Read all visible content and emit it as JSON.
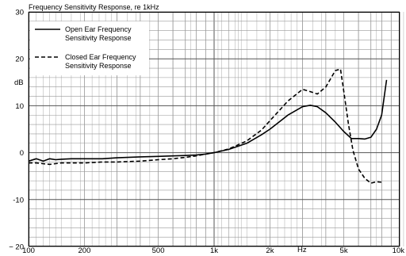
{
  "chart_data": {
    "type": "line",
    "title": "Frequency Sensitivity Response, re 1kHz",
    "xlabel": "Hz",
    "ylabel": "dB",
    "x_scale": "log",
    "xlim": [
      100,
      10000
    ],
    "ylim": [
      -20,
      30
    ],
    "x_ticks": [
      {
        "value": 100,
        "label": "100"
      },
      {
        "value": 200,
        "label": "200"
      },
      {
        "value": 500,
        "label": "500"
      },
      {
        "value": 1000,
        "label": "1k"
      },
      {
        "value": 2000,
        "label": "2k"
      },
      {
        "value": 5000,
        "label": "5k"
      },
      {
        "value": 10000,
        "label": "10k"
      }
    ],
    "y_ticks": [
      {
        "value": 30,
        "label": "30"
      },
      {
        "value": 20,
        "label": "20"
      },
      {
        "value": 10,
        "label": "10"
      },
      {
        "value": 0,
        "label": "0"
      },
      {
        "value": -10,
        "label": "-10"
      },
      {
        "value": -20,
        "label": "− 20"
      }
    ],
    "grid": true,
    "legend_position": "top-left",
    "series": [
      {
        "name": "Open Ear Frequency\nSensitivity Response",
        "style": "solid",
        "color": "#000000",
        "x": [
          100,
          110,
          120,
          130,
          140,
          150,
          170,
          200,
          250,
          300,
          400,
          500,
          600,
          700,
          800,
          900,
          1000,
          1200,
          1500,
          1800,
          2000,
          2500,
          3000,
          3300,
          3600,
          4000,
          4500,
          5000,
          5500,
          6000,
          6500,
          7000,
          7500,
          8000
        ],
        "y": [
          -1.8,
          -1.3,
          -1.8,
          -1.3,
          -1.5,
          -1.4,
          -1.3,
          -1.3,
          -1.3,
          -1.1,
          -0.9,
          -0.8,
          -0.7,
          -0.6,
          -0.5,
          -0.3,
          0,
          0.7,
          2,
          3.8,
          5,
          8,
          9.8,
          10.1,
          9.8,
          8.5,
          6.5,
          4.5,
          3,
          3,
          2.9,
          3.3,
          5,
          8
        ],
        "x_end": [
          8000,
          8500
        ],
        "y_end": [
          8,
          15.5
        ]
      },
      {
        "name": "Closed Ear Frequency\nSensitivity Response",
        "style": "dashed",
        "color": "#000000",
        "x": [
          100,
          110,
          130,
          150,
          200,
          250,
          300,
          400,
          500,
          600,
          700,
          800,
          900,
          1000,
          1200,
          1500,
          1800,
          2000,
          2500,
          3000,
          3300,
          3600,
          4000,
          4500,
          4800,
          5000,
          5300,
          5600,
          6000,
          6500,
          7000,
          7500,
          8000
        ],
        "y": [
          -2.2,
          -2.2,
          -2.5,
          -2.2,
          -2.2,
          -2,
          -2,
          -1.8,
          -1.5,
          -1.3,
          -1,
          -0.7,
          -0.3,
          0,
          0.8,
          2.5,
          4.8,
          6.8,
          11,
          13.5,
          13,
          12.5,
          14,
          17.5,
          17.8,
          13,
          6,
          0.5,
          -3.5,
          -5.5,
          -6.5,
          -6.2,
          -6.3
        ]
      }
    ],
    "legend": [
      {
        "line1": "Open Ear Frequency",
        "line2": "Sensitivity Response",
        "style": "solid"
      },
      {
        "line1": "Closed Ear Frequency",
        "line2": "Sensitivity Response",
        "style": "dashed"
      }
    ]
  }
}
